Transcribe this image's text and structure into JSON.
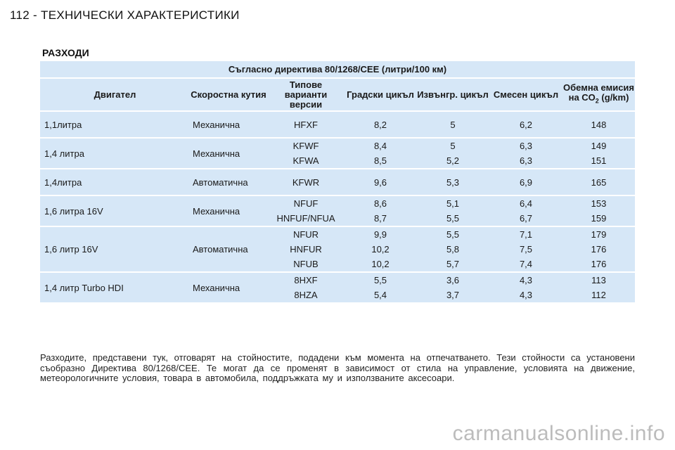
{
  "header": {
    "title": "112 - ТЕХНИЧЕСКИ ХАРАКТЕРИСТИКИ"
  },
  "section": {
    "title": "РАЗХОДИ"
  },
  "table": {
    "caption": "Съгласно директива 80/1268/CEE (литри/100 км)",
    "columns": {
      "engine": "Двигател",
      "gearbox": "Скоростна кутия",
      "versions": "Типове варианти версии",
      "urban": "Градски цикъл",
      "extra_urban": "Извънгр. цикъл",
      "combined": "Смесен цикъл",
      "co2_prefix": "Обемна емисия на CO",
      "co2_sub": "2",
      "co2_suffix": " (g/km)"
    },
    "rows": [
      {
        "engine": "1,1литра",
        "gearbox": "Механична",
        "versions": [
          "HFXF"
        ],
        "urban": [
          "8,2"
        ],
        "extra_urban": [
          "5"
        ],
        "combined": [
          "6,2"
        ],
        "co2": [
          "148"
        ]
      },
      {
        "engine": "1,4 литра",
        "gearbox": "Механична",
        "versions": [
          "KFWF",
          "KFWA"
        ],
        "urban": [
          "8,4",
          "8,5"
        ],
        "extra_urban": [
          "5",
          "5,2"
        ],
        "combined": [
          "6,3",
          "6,3"
        ],
        "co2": [
          "149",
          "151"
        ]
      },
      {
        "engine": "1,4литра",
        "gearbox": "Автоматична",
        "versions": [
          "KFWR"
        ],
        "urban": [
          "9,6"
        ],
        "extra_urban": [
          "5,3"
        ],
        "combined": [
          "6,9"
        ],
        "co2": [
          "165"
        ]
      },
      {
        "engine": "1,6 литра 16V",
        "gearbox": "Механична",
        "versions": [
          "NFUF",
          "HNFUF/NFUA"
        ],
        "urban": [
          "8,6",
          "8,7"
        ],
        "extra_urban": [
          "5,1",
          "5,5"
        ],
        "combined": [
          "6,4",
          "6,7"
        ],
        "co2": [
          "153",
          "159"
        ]
      },
      {
        "engine": "1,6 литр 16V",
        "gearbox": "Автоматична",
        "versions": [
          "NFUR",
          "HNFUR",
          "NFUB"
        ],
        "urban": [
          "9,9",
          "10,2",
          "10,2"
        ],
        "extra_urban": [
          "5,5",
          "5,8",
          "5,7"
        ],
        "combined": [
          "7,1",
          "7,5",
          "7,4"
        ],
        "co2": [
          "179",
          "176",
          "176"
        ]
      },
      {
        "engine": "1,4 литр Turbo HDI",
        "gearbox": "Механична",
        "versions": [
          "8HXF",
          "8HZA"
        ],
        "urban": [
          "5,5",
          "5,4"
        ],
        "extra_urban": [
          "3,6",
          "3,7"
        ],
        "combined": [
          "4,3",
          "4,3"
        ],
        "co2": [
          "113",
          "112"
        ]
      }
    ]
  },
  "note": "Разходите, представени тук, отговарят на стойностите, подадени към момента на отпечатването. Тези стойности са установени съобразно Директива 80/1268/CEE. Те могат да се променят в зависимост от стила на управление, условията на движение, метеорологичните условия, товара в автомобила, поддръжката му и използваните аксесоари.",
  "watermark": "carmanualsonline.info"
}
